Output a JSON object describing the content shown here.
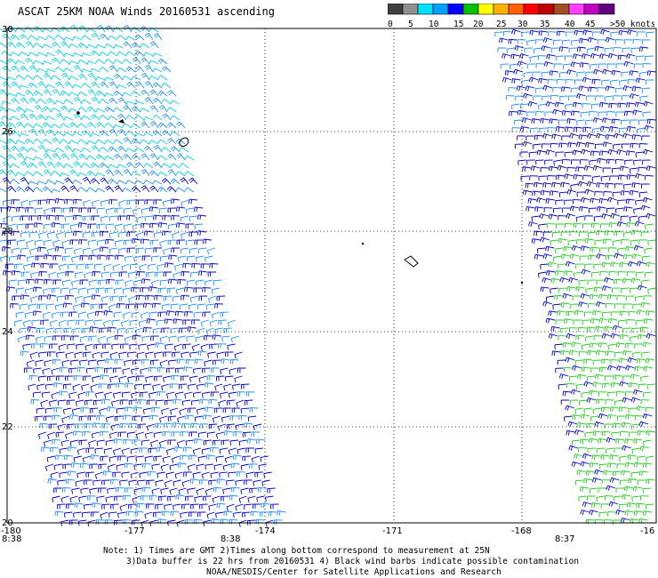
{
  "title": "ASCAT 25KM NOAA Winds 20160531 ascending",
  "legend": {
    "labels": [
      "0",
      "5",
      "10",
      "15",
      "20",
      "25",
      "30",
      "35",
      "40",
      "45",
      ">50 knots"
    ],
    "colors": [
      "#404040",
      "#909090",
      "#00e0ff",
      "#00a0ff",
      "#0000ff",
      "#00c000",
      "#ffff00",
      "#ffb000",
      "#ff6000",
      "#ff0000",
      "#c00000",
      "#a05020",
      "#ff40ff",
      "#c000c0",
      "#600080"
    ]
  },
  "map": {
    "lat_labels": [
      "30",
      "26",
      "28",
      "24",
      "22",
      "20"
    ],
    "lon_labels": [
      "-180",
      "-177",
      "-174",
      "-171",
      "-168",
      "-16"
    ],
    "time_labels": [
      "8:38",
      "8:38",
      "8:37"
    ]
  },
  "colors": {
    "cyan": "#00d0e8",
    "light_blue": "#1e90ff",
    "dark_blue": "#0000d0",
    "navy": "#000080",
    "green": "#22cc22",
    "time": "#800080",
    "grid": "#000000"
  },
  "notes": {
    "line1": "Note: 1) Times are GMT 2)Times along bottom correspond to measurement at 25N",
    "line2": "3)Data buffer is 22 hrs from 20160531 4) Black wind barbs indicate possible contamination",
    "line3": "NOAA/NESDIS/Center for Satellite Applications and Research"
  }
}
